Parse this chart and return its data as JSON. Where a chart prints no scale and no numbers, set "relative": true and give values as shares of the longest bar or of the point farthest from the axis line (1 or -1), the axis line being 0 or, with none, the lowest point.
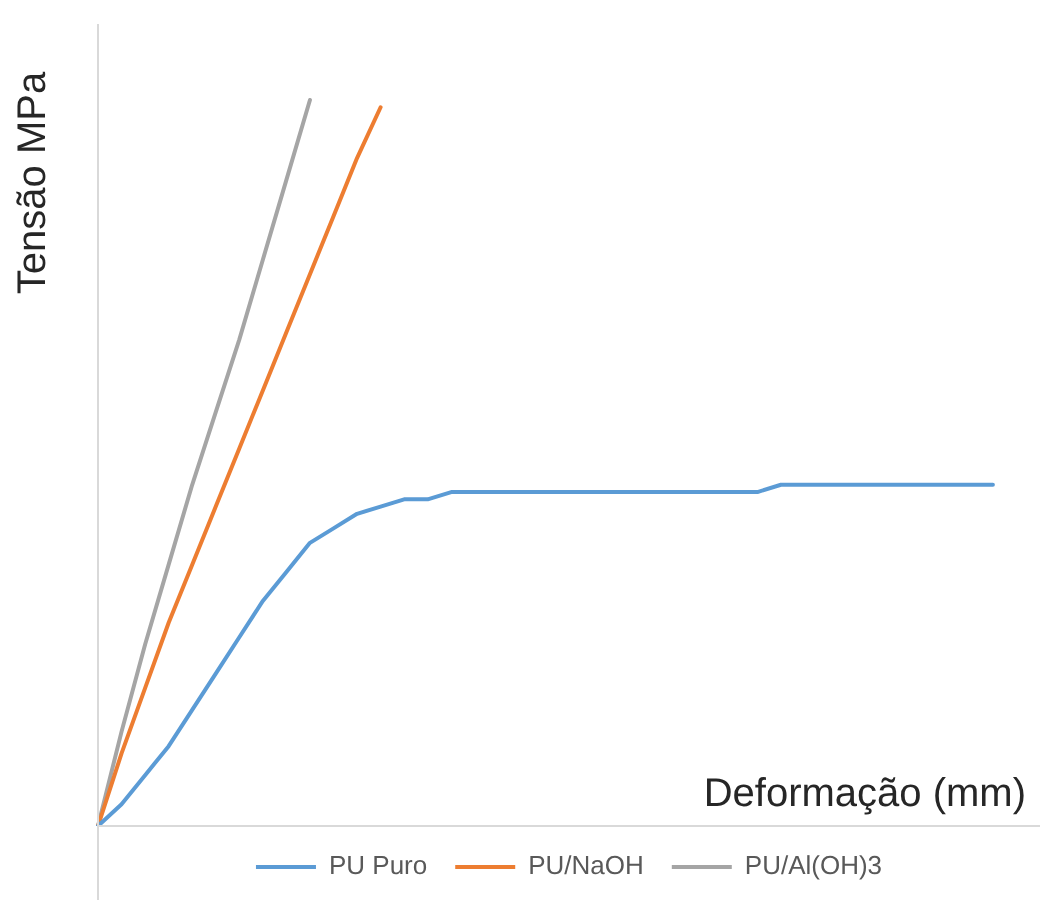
{
  "chart_data": {
    "type": "line",
    "relative": true,
    "xlabel": "Deformação (mm)",
    "ylabel": "Tensão MPa",
    "legend": "bottom",
    "marker": "none",
    "line_style": "solid",
    "categories": [
      null,
      null,
      null,
      null,
      null,
      null,
      null,
      null,
      null,
      null,
      null,
      null,
      null,
      null,
      null,
      null,
      null,
      null,
      null,
      null,
      null,
      null,
      null,
      null,
      null,
      null,
      null,
      null,
      null,
      null,
      null,
      null,
      null,
      null,
      null,
      null,
      null,
      null,
      null,
      null,
      null
    ],
    "series": [
      {
        "name": "PU Puro",
        "color": "#5b9bd5",
        "values": [
          0,
          0.03,
          0.07,
          0.11,
          0.16,
          0.21,
          0.26,
          0.31,
          0.35,
          0.39,
          0.41,
          0.43,
          0.44,
          0.45,
          0.45,
          0.46,
          0.46,
          0.46,
          0.46,
          0.46,
          0.46,
          0.46,
          0.46,
          0.46,
          0.46,
          0.46,
          0.46,
          0.46,
          0.46,
          0.47,
          0.47,
          0.47,
          0.47,
          0.47,
          0.47,
          0.47,
          0.47,
          0.47,
          0.47,
          null,
          null
        ]
      },
      {
        "name": "PU/NaOH",
        "color": "#ed7d31",
        "values": [
          0,
          0.1,
          0.19,
          0.28,
          0.36,
          0.44,
          0.52,
          0.6,
          0.68,
          0.76,
          0.84,
          0.92,
          0.99,
          null,
          null,
          null,
          null,
          null,
          null,
          null,
          null,
          null,
          null,
          null,
          null,
          null,
          null,
          null,
          null,
          null,
          null,
          null,
          null,
          null,
          null,
          null,
          null,
          null,
          null,
          null,
          null
        ]
      },
      {
        "name": "PU/Al(OH)3",
        "color": "#a5a5a5",
        "values": [
          0,
          0.13,
          0.25,
          0.36,
          0.47,
          0.57,
          0.67,
          0.78,
          0.89,
          1,
          null,
          null,
          null,
          null,
          null,
          null,
          null,
          null,
          null,
          null,
          null,
          null,
          null,
          null,
          null,
          null,
          null,
          null,
          null,
          null,
          null,
          null,
          null,
          null,
          null,
          null,
          null,
          null,
          null,
          null,
          null
        ]
      }
    ]
  }
}
